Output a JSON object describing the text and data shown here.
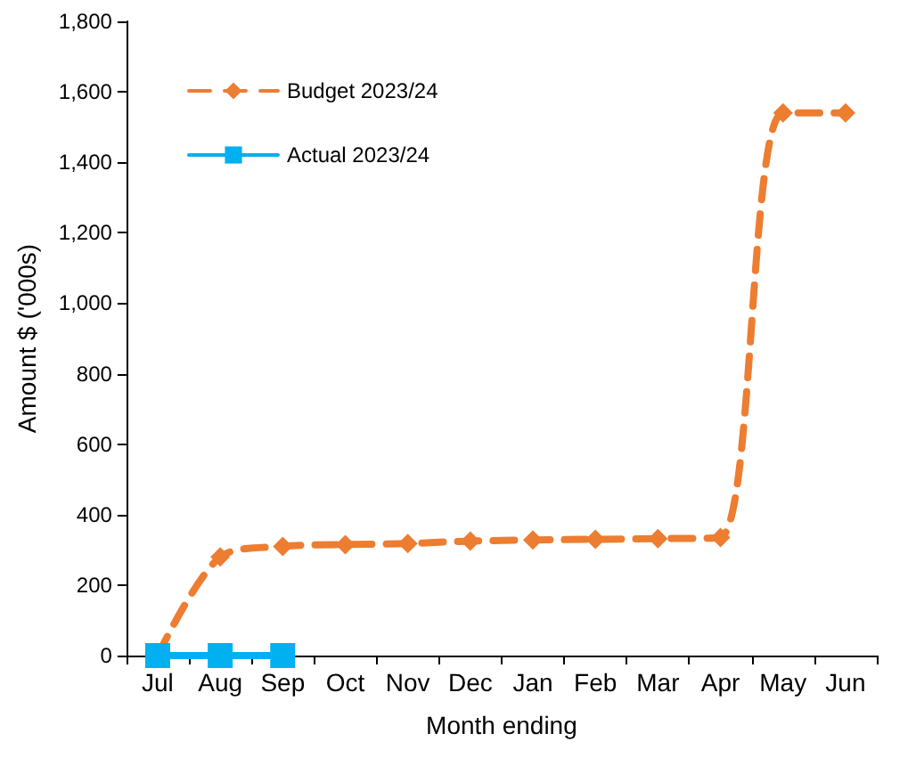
{
  "chart_data": {
    "type": "line",
    "xlabel": "Month ending",
    "ylabel": "Amount $ ('000s)",
    "categories": [
      "Jul",
      "Aug",
      "Sep",
      "Oct",
      "Nov",
      "Dec",
      "Jan",
      "Feb",
      "Mar",
      "Apr",
      "May",
      "Jun"
    ],
    "series": [
      {
        "name": "Budget 2023/24",
        "color": "#ed7d31",
        "marker": "diamond",
        "line_style": "dashed",
        "values": [
          0,
          280,
          310,
          315,
          318,
          325,
          328,
          330,
          332,
          335,
          1540,
          1540
        ]
      },
      {
        "name": "Actual 2023/24",
        "color": "#00b0f0",
        "marker": "square",
        "line_style": "solid",
        "values": [
          0,
          0,
          0,
          null,
          null,
          null,
          null,
          null,
          null,
          null,
          null,
          null
        ]
      }
    ],
    "ylim": [
      0,
      1800
    ],
    "yticks": [
      0,
      200,
      400,
      600,
      800,
      {
        "value": 1000,
        "label": "1,000"
      },
      {
        "value": 1200,
        "label": "1,200"
      },
      {
        "value": 1400,
        "label": "1,400"
      },
      {
        "value": 1600,
        "label": "1,600"
      },
      {
        "value": 1800,
        "label": "1,800"
      }
    ],
    "grid": false,
    "legend": "top left"
  }
}
